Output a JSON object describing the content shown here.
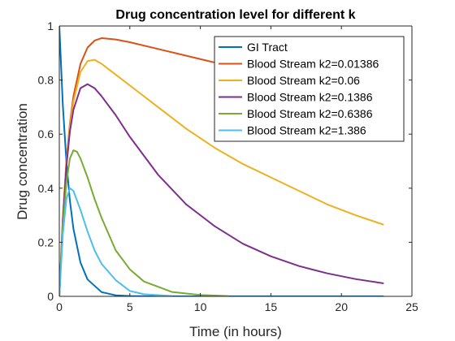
{
  "chart_data": {
    "type": "line",
    "title": "Drug concentration level for different k",
    "xlabel": "Time (in hours)",
    "ylabel": "Drug concentration",
    "xlim": [
      0,
      25
    ],
    "ylim": [
      0,
      1
    ],
    "xticks": [
      0,
      5,
      10,
      15,
      20,
      25
    ],
    "yticks": [
      0,
      0.2,
      0.4,
      0.6,
      0.8,
      1
    ],
    "xtick_labels": [
      "0",
      "5",
      "10",
      "15",
      "20",
      "25"
    ],
    "ytick_labels": [
      "0",
      "0.2",
      "0.4",
      "0.6",
      "0.8",
      "1"
    ],
    "grid": false,
    "legend_position": "top-right",
    "series": [
      {
        "name": "GI Tract",
        "color": "#0072BD",
        "x": [
          0,
          0.25,
          0.5,
          0.75,
          1,
          1.5,
          2,
          3,
          4,
          5,
          6,
          8,
          10,
          15,
          23
        ],
        "y": [
          1.0,
          0.707,
          0.5,
          0.354,
          0.25,
          0.125,
          0.0625,
          0.0156,
          0.0039,
          0.001,
          0.0002,
          0,
          0,
          0,
          0
        ]
      },
      {
        "name": "Blood Stream k2=0.01386",
        "color": "#D95319",
        "x": [
          0,
          0.25,
          0.5,
          0.75,
          1,
          1.5,
          2,
          2.5,
          3,
          4,
          5,
          7,
          9,
          11,
          11.5
        ],
        "y": [
          0,
          0.29,
          0.5,
          0.64,
          0.74,
          0.86,
          0.92,
          0.946,
          0.955,
          0.95,
          0.94,
          0.915,
          0.89,
          0.865,
          0.859
        ]
      },
      {
        "name": "Blood Stream k2=0.06",
        "color": "#EDB120",
        "x": [
          0,
          0.25,
          0.5,
          0.75,
          1,
          1.5,
          2,
          2.5,
          3,
          4,
          5,
          7,
          9,
          11,
          13,
          15,
          17,
          19,
          21,
          23
        ],
        "y": [
          0,
          0.29,
          0.49,
          0.63,
          0.72,
          0.83,
          0.87,
          0.875,
          0.86,
          0.82,
          0.78,
          0.7,
          0.62,
          0.55,
          0.49,
          0.44,
          0.39,
          0.34,
          0.3,
          0.265
        ]
      },
      {
        "name": "Blood Stream k2=0.1386",
        "color": "#7E2F8E",
        "x": [
          0,
          0.25,
          0.5,
          0.75,
          1,
          1.5,
          2,
          2.5,
          3,
          4,
          5,
          7,
          9,
          11,
          13,
          15,
          17,
          19,
          21,
          23
        ],
        "y": [
          0,
          0.28,
          0.48,
          0.61,
          0.69,
          0.77,
          0.785,
          0.77,
          0.74,
          0.67,
          0.59,
          0.45,
          0.34,
          0.26,
          0.195,
          0.148,
          0.112,
          0.085,
          0.064,
          0.048
        ]
      },
      {
        "name": "Blood Stream k2=0.6386",
        "color": "#77AC30",
        "x": [
          0,
          0.25,
          0.5,
          0.75,
          1,
          1.25,
          1.5,
          2,
          2.5,
          3,
          4,
          5,
          6,
          8,
          10,
          12
        ],
        "y": [
          0,
          0.26,
          0.42,
          0.51,
          0.54,
          0.535,
          0.51,
          0.44,
          0.36,
          0.29,
          0.17,
          0.1,
          0.055,
          0.016,
          0.005,
          0.001
        ]
      },
      {
        "name": "Blood Stream k2=1.386",
        "color": "#4DBEEE",
        "x": [
          0,
          0.25,
          0.5,
          0.75,
          1,
          1.5,
          2,
          2.5,
          3,
          4,
          5,
          6,
          8
        ],
        "y": [
          0,
          0.23,
          0.36,
          0.4,
          0.39,
          0.32,
          0.24,
          0.17,
          0.12,
          0.06,
          0.02,
          0.008,
          0.001
        ]
      }
    ]
  }
}
